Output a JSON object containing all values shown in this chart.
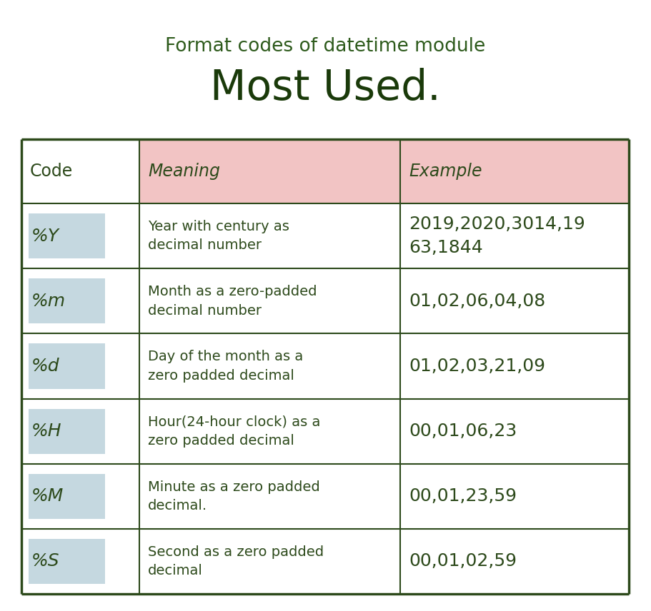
{
  "title_line1": "Format codes of datetime module",
  "title_line2": "Most Used.",
  "title1_color": "#2d5a1b",
  "title2_color": "#1a3a0a",
  "title1_fontsize": 19,
  "title2_fontsize": 42,
  "bg_color": "#ffffff",
  "border_color": "#2d4a1b",
  "text_color": "#2d4a1b",
  "header": [
    "Code",
    "Meaning",
    "Example"
  ],
  "header_bg": [
    "#ffffff",
    "#f2c4c4",
    "#f2c4c4"
  ],
  "header_italic": [
    false,
    true,
    true
  ],
  "rows": [
    [
      "%Y",
      "Year with century as\ndecimal number",
      "2019,2020,3014,19\n63,1844"
    ],
    [
      "%m",
      "Month as a zero-padded\ndecimal number",
      "01,02,06,04,08"
    ],
    [
      "%d",
      "Day of the month as a\nzero padded decimal",
      "01,02,03,21,09"
    ],
    [
      "%H",
      "Hour(24-hour clock) as a\nzero padded decimal",
      "00,01,06,23"
    ],
    [
      "%M",
      "Minute as a zero padded\ndecimal.",
      "00,01,23,59"
    ],
    [
      "%S",
      "Second as a zero padded\ndecimal",
      "00,01,02,59"
    ]
  ],
  "code_bg": "#c5d8e0",
  "fig_width": 9.11,
  "fig_height": 8.56,
  "dpi": 100
}
